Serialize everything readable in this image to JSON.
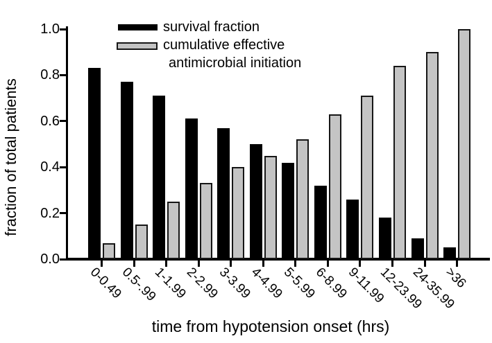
{
  "chart_data": {
    "type": "bar",
    "title": "",
    "xlabel": "time from hypotension onset (hrs)",
    "ylabel": "fraction of total patients",
    "ylim": [
      0.0,
      1.0
    ],
    "yticks": [
      0.0,
      0.2,
      0.4,
      0.6,
      0.8,
      1.0
    ],
    "ytick_labels": [
      "0.0",
      "0.2",
      "0.4",
      "0.6",
      "0.8",
      "1.0"
    ],
    "grid": false,
    "legend_position": "top-center-inside",
    "categories": [
      "0-0.49",
      "0.5-.99",
      "1-1.99",
      "2-2.99",
      "3-3.99",
      "4-4.99",
      "5-5.99",
      "6-8.99",
      "9-11.99",
      "12-23.99",
      "24-35.99",
      ">36"
    ],
    "series": [
      {
        "name": "survival fraction",
        "color": "#000000",
        "values": [
          0.83,
          0.77,
          0.71,
          0.61,
          0.57,
          0.5,
          0.42,
          0.32,
          0.26,
          0.18,
          0.09,
          0.05
        ]
      },
      {
        "name": "cumulative effective antimicrobial initiation",
        "color": "#c4c4c4",
        "values": [
          0.07,
          0.15,
          0.25,
          0.33,
          0.4,
          0.45,
          0.52,
          0.63,
          0.71,
          0.84,
          0.9,
          1.0
        ]
      }
    ]
  },
  "legend": {
    "entries": [
      {
        "lines": [
          "survival fraction"
        ]
      },
      {
        "lines": [
          "cumulative effective",
          "antimicrobial initiation"
        ]
      }
    ]
  },
  "colors": {
    "survival": "#000000",
    "cumulative_fill": "#c4c4c4",
    "cumulative_border": "#161616",
    "axis": "#000000",
    "background": "#ffffff"
  }
}
